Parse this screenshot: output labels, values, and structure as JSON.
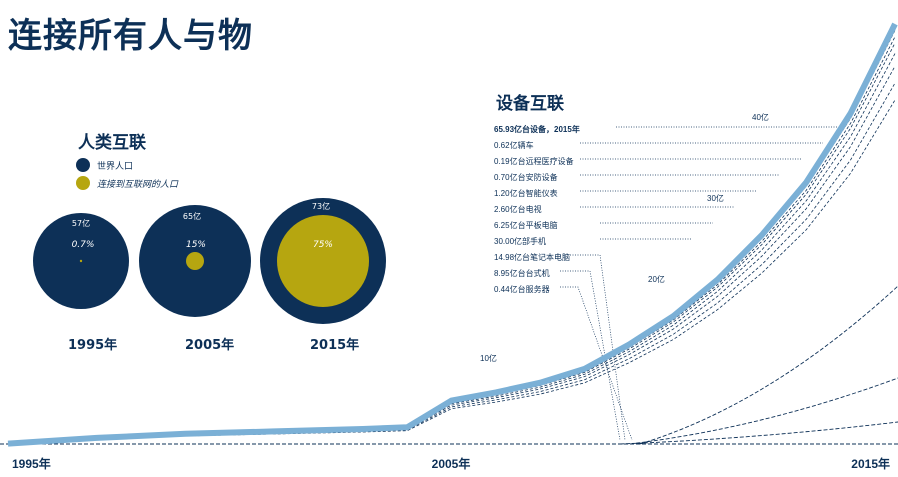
{
  "title": "连接所有人与物",
  "people": {
    "heading": "人类互联",
    "legend": [
      {
        "label": "世界人口",
        "color": "#0d3057"
      },
      {
        "label": "连接到互联网的人口",
        "color": "#b6a610"
      }
    ],
    "circles": [
      {
        "year": "1995年",
        "population": "57亿",
        "pct_label": "0.7%",
        "pct": 0.007
      },
      {
        "year": "2005年",
        "population": "65亿",
        "pct_label": "15%",
        "pct": 0.15
      },
      {
        "year": "2015年",
        "population": "73亿",
        "pct_label": "75%",
        "pct": 0.75
      }
    ]
  },
  "devices": {
    "heading": "设备互联",
    "items": [
      {
        "label": "65.93亿台设备，2015年",
        "total": true
      },
      {
        "label": "0.62亿辆车"
      },
      {
        "label": "0.19亿台远程医疗设备"
      },
      {
        "label": "0.70亿台安防设备"
      },
      {
        "label": "1.20亿台智能仪表"
      },
      {
        "label": "2.60亿台电视"
      },
      {
        "label": "6.25亿台平板电脑"
      },
      {
        "label": "30.00亿部手机"
      },
      {
        "label": "14.98亿台笔记本电脑"
      },
      {
        "label": "8.95亿台台式机"
      },
      {
        "label": "0.44亿台服务器"
      }
    ]
  },
  "chart_data": {
    "type": "line",
    "x": [
      1995,
      1997,
      1999,
      2001,
      2003,
      2004,
      2005,
      2006,
      2007,
      2008,
      2009,
      2010,
      2011,
      2012,
      2013,
      2014,
      2015
    ],
    "series": [
      {
        "values": [
          0.3,
          1.0,
          1.5,
          1.8,
          2.1,
          2.3,
          5.6,
          6.6,
          7.8,
          9.5,
          12.5,
          16,
          20.5,
          26,
          32.5,
          41,
          52
        ]
      }
    ],
    "gridline_labels": [
      "10亿",
      "20亿",
      "30亿",
      "40亿"
    ],
    "x_tick_labels": [
      "1995年",
      "2005年",
      "2015年"
    ],
    "line_color": "#7bb0d6"
  }
}
